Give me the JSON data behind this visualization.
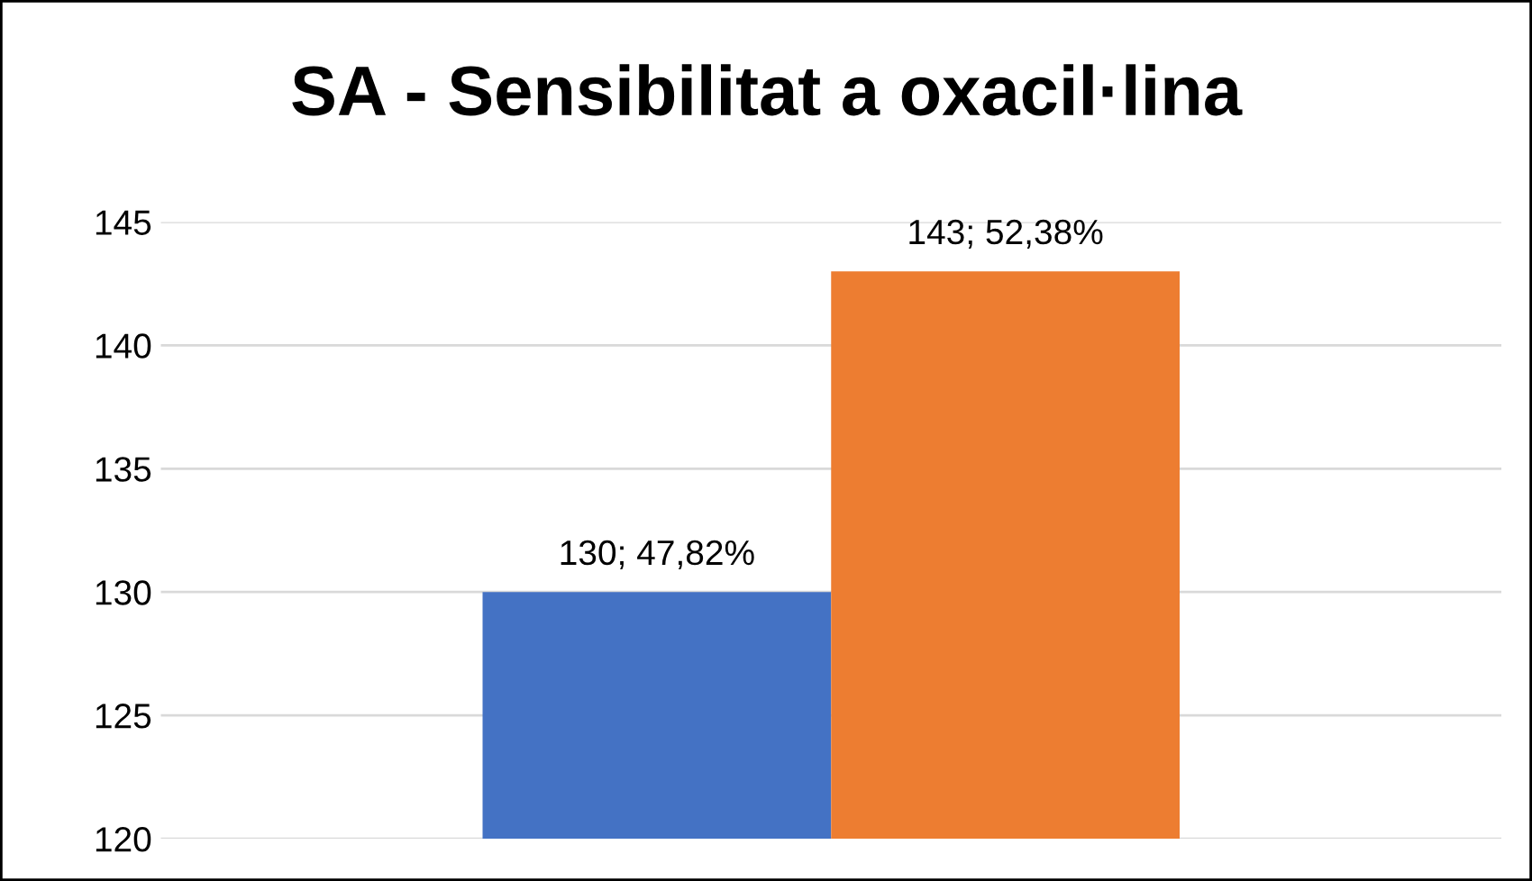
{
  "chart_data": {
    "type": "bar",
    "title": "SA - Sensibilitat a oxacil·lina",
    "categories": [
      null
    ],
    "series": [
      {
        "color": "#4472c4",
        "values": [
          130
        ],
        "value_labels": [
          "130; 47,82%"
        ]
      },
      {
        "color": "#ed7d31",
        "values": [
          143
        ],
        "value_labels": [
          "143; 52,38%"
        ]
      }
    ],
    "ylim": [
      120,
      145
    ],
    "yticks": [
      120,
      125,
      130,
      135,
      140,
      145
    ],
    "grid": "y",
    "legend": false
  }
}
